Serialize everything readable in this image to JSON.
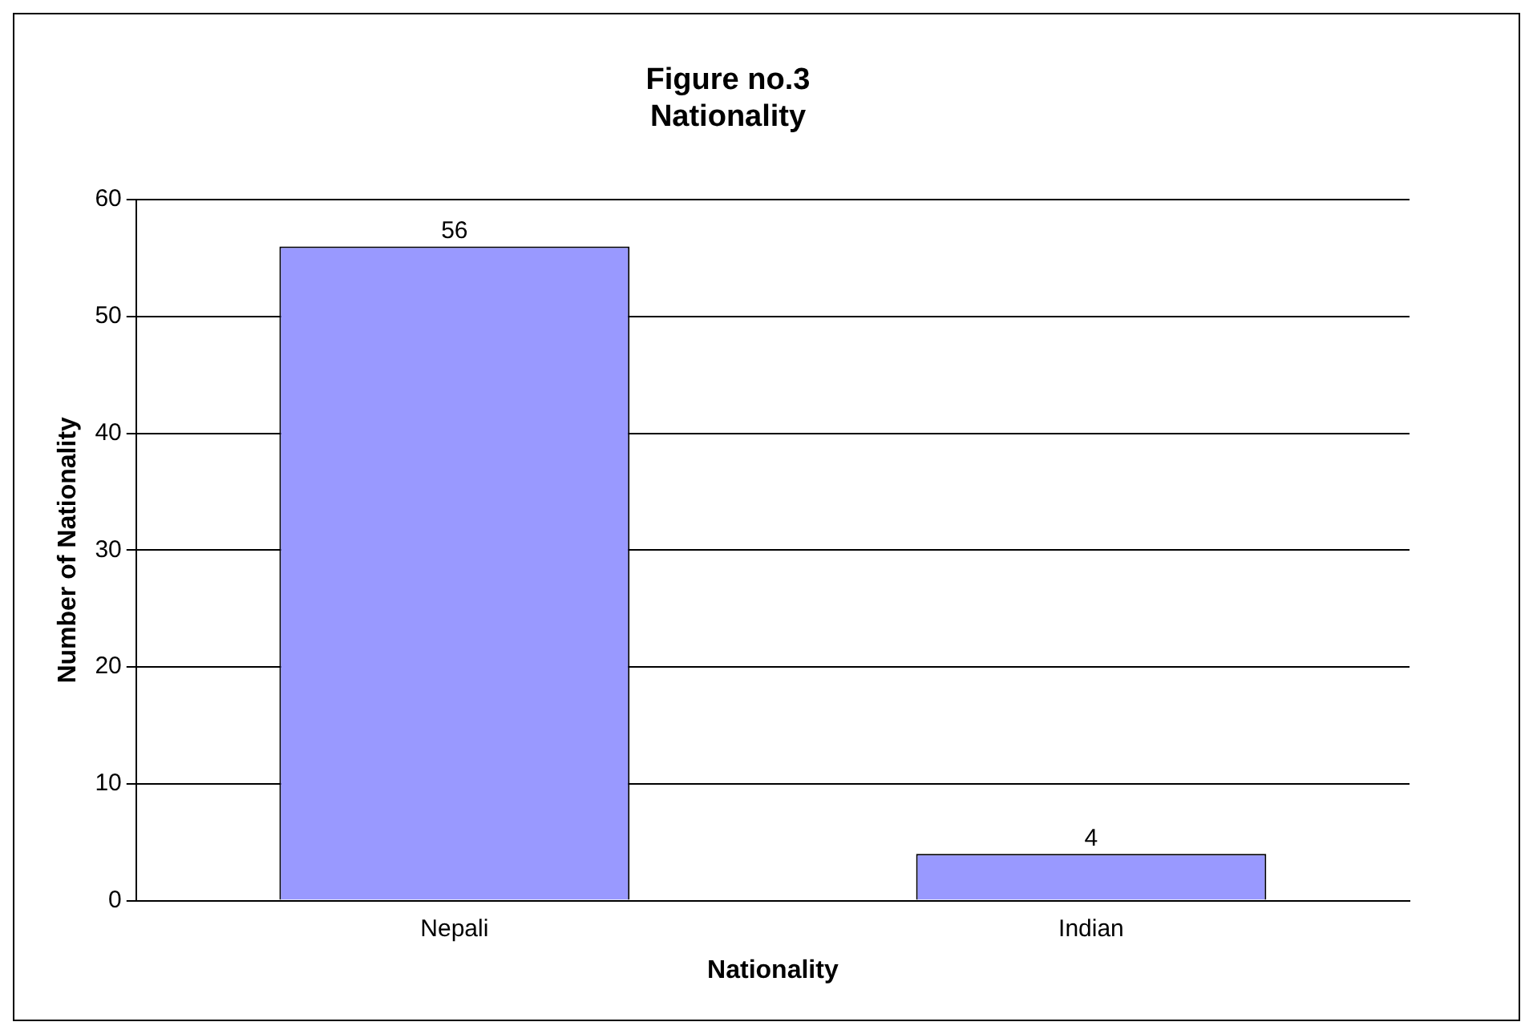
{
  "chart_data": {
    "type": "bar",
    "title": "Figure no.3",
    "subtitle": "Nationality",
    "xlabel": "Nationality",
    "ylabel": "Number of Nationality",
    "categories": [
      "Nepali",
      "Indian"
    ],
    "values": [
      56,
      4
    ],
    "color": "#9999ff",
    "ylim": [
      0,
      60
    ],
    "yticks": [
      0,
      10,
      20,
      30,
      40,
      50,
      60
    ],
    "grid": "y",
    "data_labels": true
  }
}
